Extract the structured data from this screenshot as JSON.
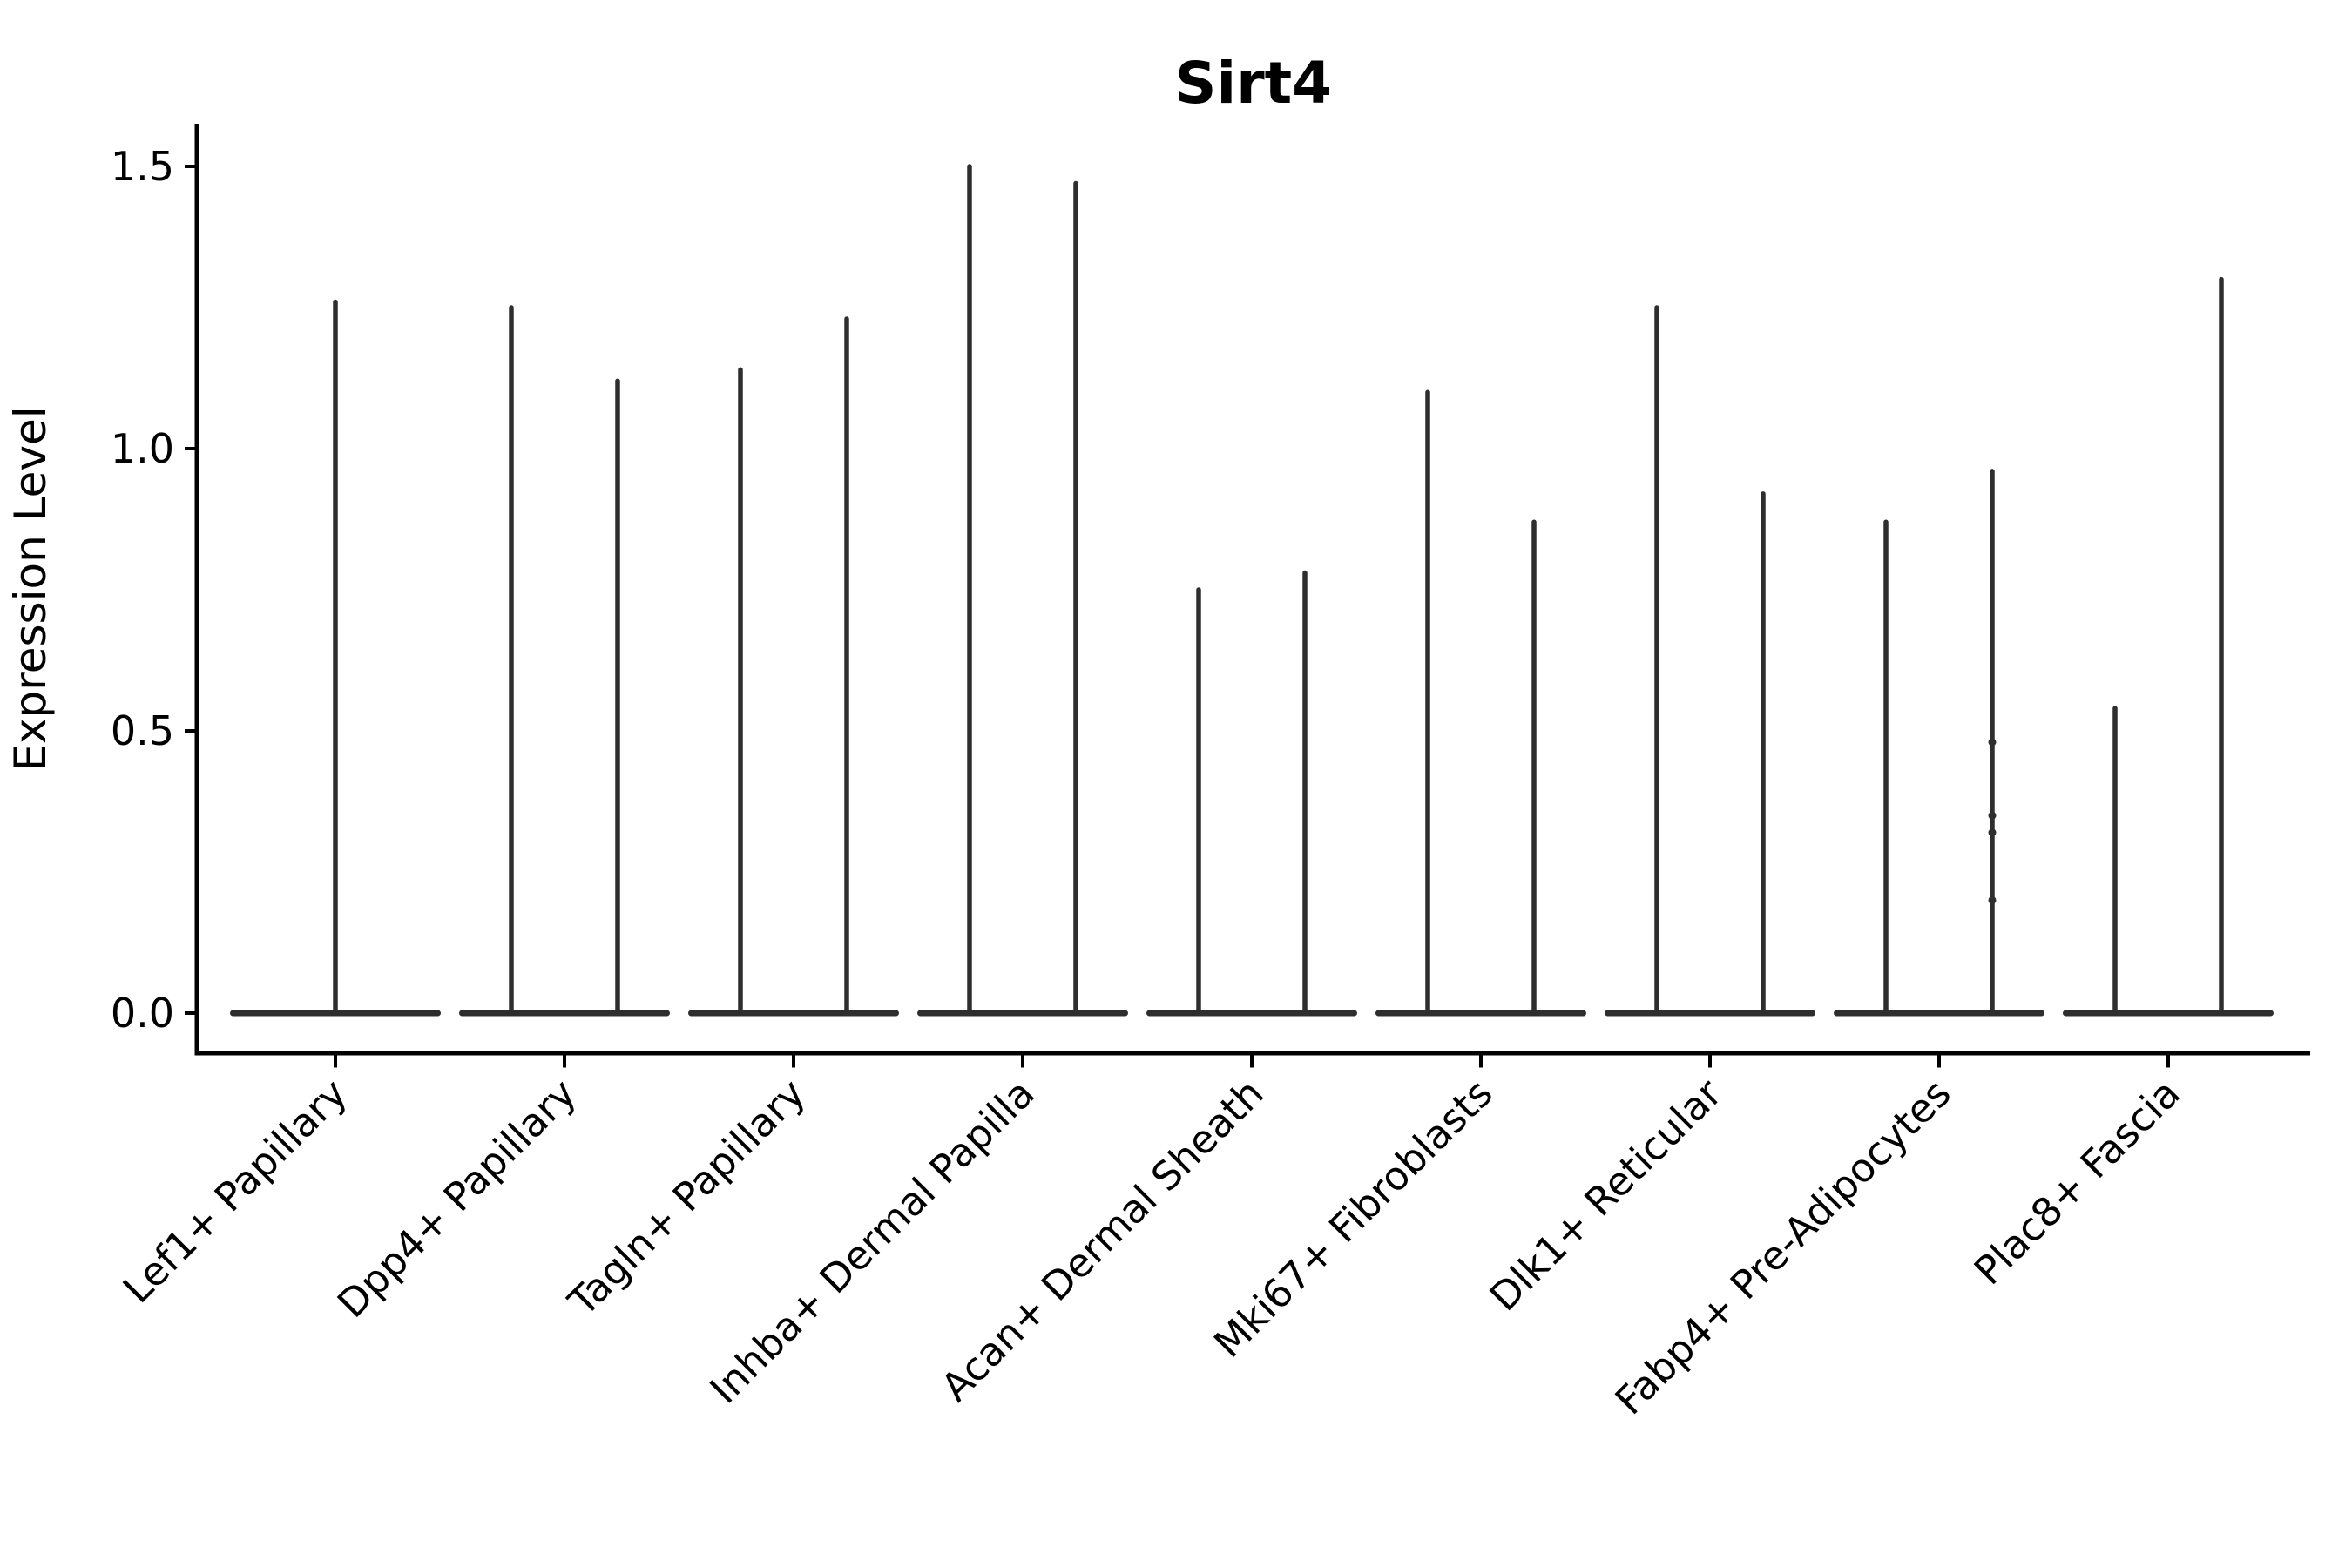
{
  "chart_data": {
    "type": "violin",
    "title": "Sirt4",
    "xlabel": "",
    "ylabel": "Expression Level",
    "ylim": [
      0,
      1.58
    ],
    "yticks": [
      0.0,
      0.5,
      1.0,
      1.5
    ],
    "ytick_labels": [
      "0.0",
      "0.5",
      "1.0",
      "1.5"
    ],
    "x_tick_rotation": 45,
    "grid": false,
    "legend": "none",
    "categories": [
      "Lef1+ Papillary",
      "Dpp4+ Papillary",
      "Tagln+ Papillary",
      "Inhba+ Dermal Papilla",
      "Acan+ Dermal Sheath",
      "Mki67+ Fibroblasts",
      "Dlk1+ Reticular",
      "Fabp4+ Pre-Adipocytes",
      "Plac8+ Fascia"
    ],
    "violin_style": "near-zero-width spikes with flat bulge at expression 0; all violins dark gray",
    "violins": [
      {
        "category": "Lef1+ Papillary",
        "spikes": [
          {
            "offset": 0,
            "max": 1.26
          }
        ]
      },
      {
        "category": "Dpp4+ Papillary",
        "spikes": [
          {
            "offset": -1,
            "max": 1.25
          },
          {
            "offset": 1,
            "max": 1.12
          }
        ]
      },
      {
        "category": "Tagln+ Papillary",
        "spikes": [
          {
            "offset": -1,
            "max": 1.14
          },
          {
            "offset": 1,
            "max": 1.23
          }
        ]
      },
      {
        "category": "Inhba+ Dermal Papilla",
        "spikes": [
          {
            "offset": -1,
            "max": 1.5
          },
          {
            "offset": 1,
            "max": 1.47
          }
        ]
      },
      {
        "category": "Acan+ Dermal Sheath",
        "spikes": [
          {
            "offset": -1,
            "max": 0.75
          },
          {
            "offset": 1,
            "max": 0.78
          }
        ]
      },
      {
        "category": "Mki67+ Fibroblasts",
        "spikes": [
          {
            "offset": -1,
            "max": 1.1
          },
          {
            "offset": 1,
            "max": 0.87
          }
        ]
      },
      {
        "category": "Dlk1+ Reticular",
        "spikes": [
          {
            "offset": -1,
            "max": 1.25
          },
          {
            "offset": 1,
            "max": 0.92
          }
        ]
      },
      {
        "category": "Fabp4+ Pre-Adipocytes",
        "spikes": [
          {
            "offset": -1,
            "max": 0.87
          },
          {
            "offset": 1,
            "max": 0.96,
            "dots": [
              0.48,
              0.35,
              0.32,
              0.2
            ]
          }
        ]
      },
      {
        "category": "Plac8+ Fascia",
        "spikes": [
          {
            "offset": -1,
            "max": 0.54
          },
          {
            "offset": 1,
            "max": 1.3
          }
        ]
      }
    ],
    "colors": {
      "violin": "#2e2e2e",
      "axis": "#000000",
      "text": "#000000",
      "background": "#ffffff"
    }
  }
}
